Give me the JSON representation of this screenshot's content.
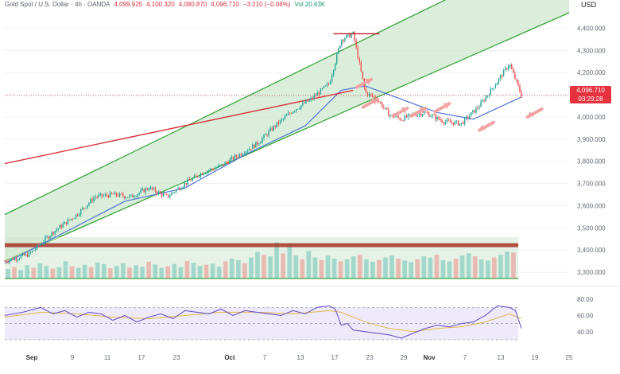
{
  "header": {
    "symbol": "Gold Spot / U.S. Dollar · 4h · OANDA",
    "o": "4,099.925",
    "h": "4,100.320",
    "l": "4,080.870",
    "c": "4,096.710",
    "chg": "−3.210 (−0.08%)",
    "vol": "Vol 20.63K",
    "currency": "USD"
  },
  "price_tag": {
    "price": "4,096.710",
    "countdown": "03:29:28"
  },
  "colors": {
    "up": "#26a69a",
    "down": "#ef5350",
    "channel_line": "#3aa63a",
    "channel_fill": "#cfe8cf",
    "ma": "#4c73d6",
    "trendline": "#d8343f",
    "hline": "#a83223",
    "rsi": "#6a55c9",
    "rsi_ma": "#e0b84a",
    "arrow": "#f2a3a3"
  },
  "chart_data": [
    {
      "type": "candlestick",
      "title": "Gold Spot / U.S. Dollar · 4h · OANDA",
      "price_axis": {
        "ticks": [
          3300,
          3400,
          3500,
          3600,
          3700,
          3800,
          3900,
          4000,
          4100,
          4200,
          4300,
          4400
        ],
        "tick_labels": [
          "3,300.000",
          "3,400.000",
          "3,500.000",
          "3,600.000",
          "3,700.000",
          "3,800.000",
          "3,900.000",
          "4,000.000",
          "4,100.000",
          "4,200.000",
          "4,300.000",
          "4,400.000"
        ],
        "ylim": [
          3250,
          4470
        ]
      },
      "date_axis": {
        "ticks": [
          "Sep",
          "9",
          "11",
          "17",
          "23",
          "Oct",
          "7",
          "13",
          "17",
          "23",
          "29",
          "Nov",
          "7",
          "13",
          "19",
          "25"
        ],
        "range_days": [
          0,
          86
        ]
      },
      "last_price": 4096.71,
      "high_annotation": 4375,
      "support_level": 3420,
      "path_keypoints": [
        [
          0,
          3350
        ],
        [
          4,
          3380
        ],
        [
          8,
          3480
        ],
        [
          12,
          3560
        ],
        [
          15,
          3640
        ],
        [
          18,
          3650
        ],
        [
          21,
          3640
        ],
        [
          24,
          3680
        ],
        [
          27,
          3640
        ],
        [
          30,
          3700
        ],
        [
          33,
          3750
        ],
        [
          36,
          3780
        ],
        [
          39,
          3830
        ],
        [
          42,
          3880
        ],
        [
          45,
          3960
        ],
        [
          48,
          4030
        ],
        [
          51,
          4080
        ],
        [
          54,
          4150
        ],
        [
          56,
          4350
        ],
        [
          58,
          4375
        ],
        [
          60,
          4110
        ],
        [
          62,
          4080
        ],
        [
          64,
          4010
        ],
        [
          66,
          3990
        ],
        [
          68,
          4010
        ],
        [
          70,
          4020
        ],
        [
          73,
          3980
        ],
        [
          76,
          3970
        ],
        [
          79,
          4050
        ],
        [
          82,
          4160
        ],
        [
          84,
          4240
        ],
        [
          86,
          4097
        ]
      ],
      "moving_average": [
        [
          0,
          3340
        ],
        [
          10,
          3480
        ],
        [
          20,
          3620
        ],
        [
          30,
          3680
        ],
        [
          40,
          3830
        ],
        [
          50,
          3960
        ],
        [
          56,
          4120
        ],
        [
          60,
          4140
        ],
        [
          66,
          4080
        ],
        [
          72,
          4020
        ],
        [
          78,
          3990
        ],
        [
          82,
          4040
        ],
        [
          86,
          4090
        ]
      ],
      "channel": {
        "lower": [
          [
            0,
            3350
          ],
          [
            86,
            4420
          ]
        ],
        "upper": [
          [
            0,
            3560
          ],
          [
            86,
            4750
          ]
        ]
      },
      "trendline": [
        [
          0,
          3790
        ],
        [
          58,
          4120
        ]
      ]
    },
    {
      "type": "bar",
      "title": "Volume",
      "ylim": [
        0,
        1
      ],
      "values_relative": [
        0.25,
        0.3,
        0.22,
        0.35,
        0.28,
        0.4,
        0.33,
        0.26,
        0.3,
        0.45,
        0.32,
        0.28,
        0.36,
        0.3,
        0.42,
        0.38,
        0.27,
        0.33,
        0.4,
        0.29,
        0.35,
        0.3,
        0.44,
        0.37,
        0.28,
        0.32,
        0.38,
        0.3,
        0.46,
        0.41,
        0.33,
        0.36,
        0.39,
        0.31,
        0.45,
        0.52,
        0.48,
        0.4,
        0.55,
        0.7,
        0.62,
        0.58,
        0.95,
        0.66,
        0.88,
        0.6,
        0.5,
        0.72,
        0.55,
        0.48,
        0.6,
        0.52,
        0.45,
        0.5,
        0.58,
        0.62,
        0.5,
        0.44,
        0.48,
        0.55,
        0.6,
        0.52,
        0.47,
        0.43,
        0.5,
        0.58,
        0.55,
        0.62,
        0.48,
        0.45,
        0.52,
        0.6,
        0.66,
        0.58,
        0.5,
        0.47,
        0.55,
        0.62,
        0.7,
        0.68
      ]
    },
    {
      "type": "line",
      "title": "RSI",
      "ylim": [
        25,
        90
      ],
      "ticks": [
        40,
        60,
        80
      ],
      "bands": [
        30,
        50,
        70
      ],
      "rsi": [
        [
          0,
          60
        ],
        [
          3,
          64
        ],
        [
          6,
          70
        ],
        [
          8,
          62
        ],
        [
          10,
          66
        ],
        [
          12,
          58
        ],
        [
          14,
          64
        ],
        [
          16,
          62
        ],
        [
          18,
          54
        ],
        [
          20,
          60
        ],
        [
          22,
          52
        ],
        [
          24,
          58
        ],
        [
          26,
          62
        ],
        [
          28,
          56
        ],
        [
          30,
          66
        ],
        [
          32,
          64
        ],
        [
          34,
          62
        ],
        [
          36,
          68
        ],
        [
          38,
          60
        ],
        [
          40,
          66
        ],
        [
          42,
          64
        ],
        [
          44,
          62
        ],
        [
          46,
          60
        ],
        [
          48,
          66
        ],
        [
          50,
          62
        ],
        [
          52,
          70
        ],
        [
          54,
          72
        ],
        [
          55,
          68
        ],
        [
          56,
          48
        ],
        [
          57,
          50
        ],
        [
          58,
          42
        ],
        [
          60,
          40
        ],
        [
          62,
          38
        ],
        [
          64,
          36
        ],
        [
          66,
          32
        ],
        [
          68,
          38
        ],
        [
          70,
          44
        ],
        [
          72,
          48
        ],
        [
          74,
          46
        ],
        [
          76,
          50
        ],
        [
          78,
          52
        ],
        [
          80,
          60
        ],
        [
          82,
          72
        ],
        [
          84,
          70
        ],
        [
          85,
          66
        ],
        [
          86,
          44
        ]
      ],
      "rsi_ma": [
        [
          0,
          58
        ],
        [
          6,
          64
        ],
        [
          12,
          62
        ],
        [
          18,
          58
        ],
        [
          24,
          56
        ],
        [
          30,
          60
        ],
        [
          36,
          64
        ],
        [
          42,
          64
        ],
        [
          48,
          62
        ],
        [
          54,
          66
        ],
        [
          56,
          64
        ],
        [
          60,
          52
        ],
        [
          64,
          44
        ],
        [
          68,
          40
        ],
        [
          72,
          44
        ],
        [
          76,
          46
        ],
        [
          80,
          52
        ],
        [
          84,
          62
        ],
        [
          86,
          56
        ]
      ]
    }
  ]
}
